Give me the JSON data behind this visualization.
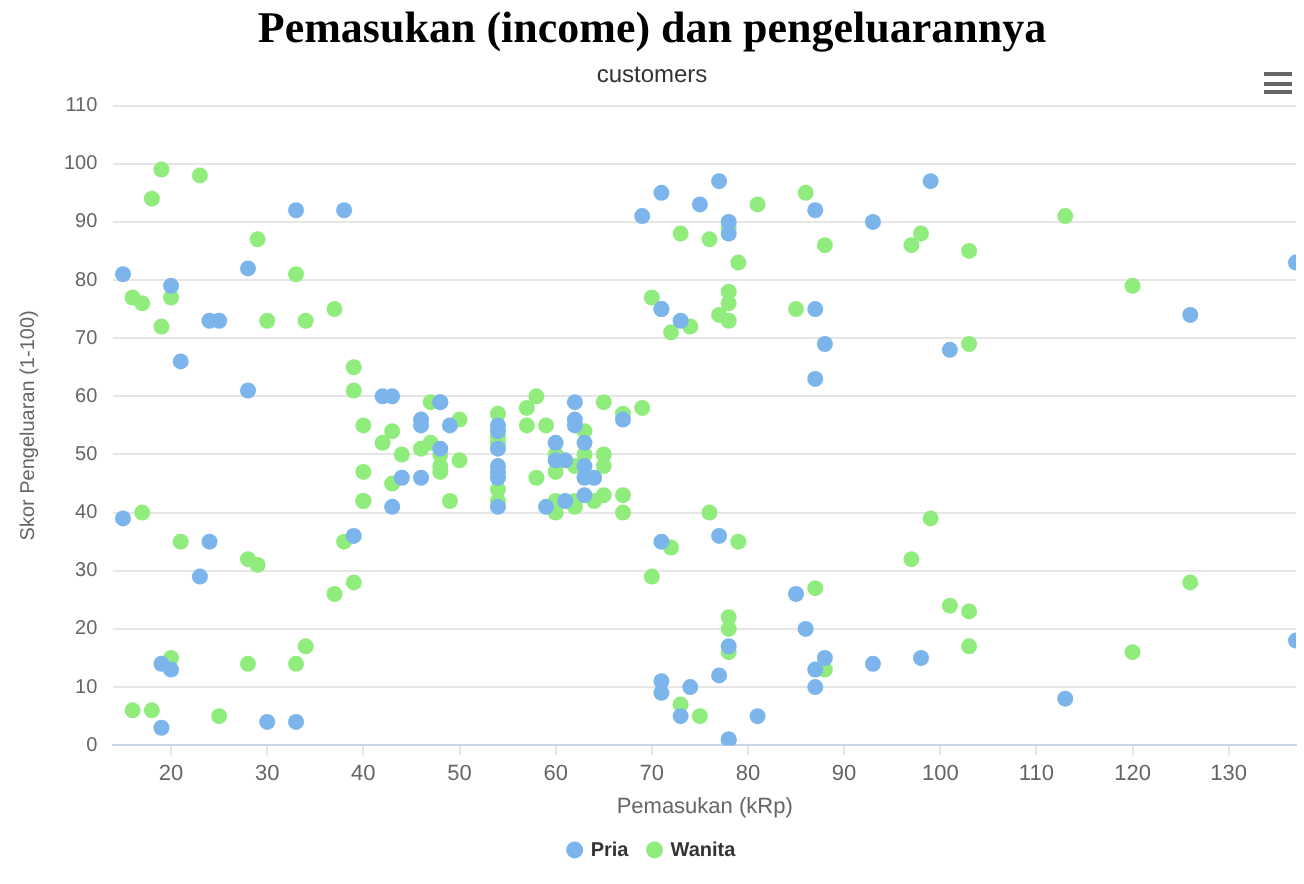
{
  "chart_data": {
    "type": "scatter",
    "title": "Pemasukan (income) dan pengeluarannya",
    "subtitle": "customers",
    "xlabel": "Pemasukan (kRp)",
    "ylabel": "Skor Pengeluaran (1-100)",
    "xlim": [
      14,
      137
    ],
    "xticks": [
      20,
      30,
      40,
      50,
      60,
      70,
      80,
      90,
      100,
      110,
      120,
      130
    ],
    "ylim": [
      0,
      110
    ],
    "yticks": [
      0,
      10,
      20,
      30,
      40,
      50,
      60,
      70,
      80,
      90,
      100,
      110
    ],
    "grid": "y",
    "legend": "bottom",
    "marker": "circle",
    "series": [
      {
        "name": "Pria",
        "color": "#7cb5ec",
        "x": [
          15,
          15,
          19,
          19,
          20,
          20,
          21,
          23,
          24,
          24,
          25,
          28,
          28,
          30,
          33,
          33,
          38,
          39,
          42,
          43,
          43,
          44,
          46,
          46,
          46,
          48,
          48,
          48,
          49,
          54,
          54,
          54,
          54,
          54,
          54,
          54,
          59,
          60,
          60,
          61,
          61,
          62,
          62,
          62,
          63,
          63,
          63,
          63,
          64,
          67,
          69,
          71,
          71,
          71,
          71,
          71,
          71,
          73,
          73,
          74,
          75,
          77,
          77,
          77,
          78,
          78,
          78,
          78,
          78,
          81,
          85,
          86,
          87,
          87,
          87,
          87,
          87,
          88,
          88,
          93,
          93,
          98,
          99,
          101,
          113,
          126,
          137,
          137
        ],
        "values": [
          39,
          81,
          3,
          14,
          13,
          79,
          66,
          29,
          35,
          73,
          73,
          82,
          61,
          4,
          4,
          92,
          92,
          36,
          60,
          60,
          41,
          46,
          46,
          56,
          55,
          51,
          59,
          59,
          55,
          47,
          54,
          48,
          51,
          55,
          41,
          46,
          41,
          49,
          52,
          42,
          49,
          59,
          55,
          56,
          46,
          43,
          48,
          52,
          46,
          56,
          91,
          35,
          95,
          11,
          75,
          9,
          75,
          5,
          73,
          10,
          93,
          12,
          97,
          36,
          90,
          17,
          88,
          1,
          1,
          5,
          26,
          20,
          63,
          13,
          10,
          92,
          75,
          15,
          69,
          14,
          90,
          15,
          97,
          68,
          8,
          74,
          18,
          83
        ]
      },
      {
        "name": "Wanita",
        "color": "#90ed7d",
        "x": [
          16,
          16,
          17,
          17,
          18,
          18,
          19,
          19,
          20,
          20,
          21,
          23,
          25,
          28,
          28,
          29,
          29,
          30,
          33,
          33,
          34,
          34,
          37,
          37,
          38,
          39,
          39,
          39,
          40,
          40,
          40,
          40,
          42,
          43,
          43,
          44,
          46,
          47,
          47,
          48,
          48,
          48,
          49,
          50,
          50,
          54,
          54,
          54,
          54,
          54,
          57,
          57,
          58,
          58,
          59,
          60,
          60,
          60,
          60,
          62,
          62,
          62,
          63,
          63,
          64,
          65,
          65,
          65,
          65,
          67,
          67,
          67,
          69,
          70,
          70,
          72,
          72,
          73,
          73,
          74,
          75,
          76,
          76,
          77,
          78,
          78,
          78,
          78,
          78,
          78,
          78,
          79,
          79,
          81,
          85,
          86,
          87,
          88,
          88,
          97,
          97,
          98,
          99,
          101,
          103,
          103,
          103,
          103,
          113,
          120,
          120,
          126
        ],
        "values": [
          6,
          77,
          40,
          76,
          6,
          94,
          72,
          99,
          15,
          77,
          35,
          98,
          5,
          14,
          32,
          31,
          87,
          73,
          14,
          81,
          17,
          73,
          26,
          75,
          35,
          61,
          28,
          65,
          55,
          47,
          42,
          42,
          52,
          54,
          45,
          50,
          51,
          52,
          59,
          50,
          48,
          47,
          42,
          49,
          56,
          53,
          52,
          42,
          44,
          57,
          58,
          55,
          60,
          46,
          55,
          40,
          42,
          47,
          50,
          41,
          48,
          42,
          50,
          54,
          42,
          48,
          50,
          43,
          59,
          43,
          57,
          40,
          58,
          29,
          77,
          34,
          71,
          88,
          7,
          72,
          5,
          40,
          87,
          74,
          22,
          20,
          76,
          16,
          89,
          78,
          73,
          35,
          83,
          93,
          75,
          95,
          27,
          13,
          86,
          32,
          86,
          88,
          39,
          24,
          17,
          85,
          23,
          69,
          91,
          16,
          79,
          28
        ]
      }
    ]
  }
}
